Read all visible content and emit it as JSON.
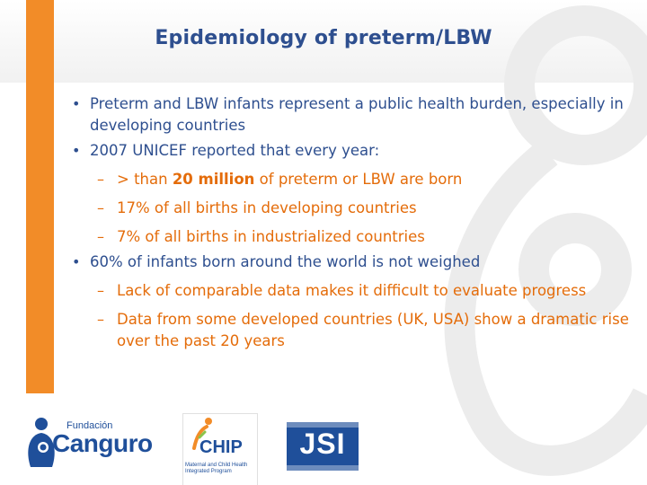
{
  "slide": {
    "title": "Epidemiology of preterm/LBW",
    "bullets": [
      {
        "level": 1,
        "text": "Preterm and LBW infants represent a public health burden, especially in developing countries"
      },
      {
        "level": 1,
        "text": "2007 UNICEF reported  that every year:"
      },
      {
        "level": 2,
        "prefix": "> than ",
        "bold": "20 million",
        "suffix": " of preterm or LBW are born"
      },
      {
        "level": 2,
        "text": "17% of all births in developing countries"
      },
      {
        "level": 2,
        "text": "7% of all births in industrialized countries"
      },
      {
        "level": 1,
        "text": "60% of infants born around the world is not weighed"
      },
      {
        "level": 2,
        "text": "Lack of comparable data makes it difficult to evaluate progress"
      },
      {
        "level": 2,
        "text": "Data  from some developed countries (UK, USA) show a dramatic rise over the past 20 years"
      }
    ]
  },
  "logos": {
    "canguro": {
      "small": "Fundación",
      "big": "Canguro"
    },
    "chip": {
      "name": "CHIP",
      "subtitle": "Maternal and Child Health Integrated Program"
    },
    "jsi": {
      "name": "JSI"
    }
  },
  "colors": {
    "title": "#2e4f8f",
    "level1": "#2e4f8f",
    "level2": "#e46c0a",
    "accent_bar": "#f28c28",
    "logo_blue": "#1f4f9a"
  }
}
